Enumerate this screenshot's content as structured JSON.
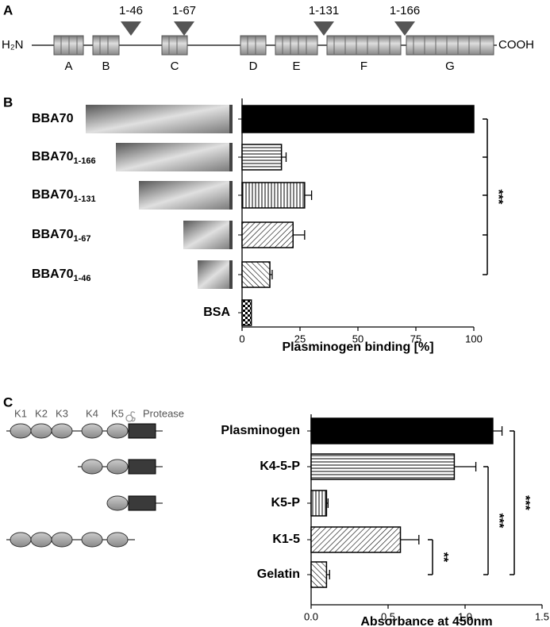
{
  "panels": [
    "A",
    "B",
    "C"
  ],
  "diagram": {
    "n_terminus": "H₂N",
    "c_terminus": "COOH",
    "segments": [
      "A",
      "B",
      "C",
      "D",
      "E",
      "F",
      "G"
    ],
    "truncations": [
      "1-46",
      "1-67",
      "1-131",
      "1-166"
    ]
  },
  "domains": {
    "kringles": [
      "K1",
      "K2",
      "K3",
      "K4",
      "K5"
    ],
    "protease": "Protease"
  },
  "chart_data": [
    {
      "type": "hbar",
      "categories": [
        "BBA70",
        "BBA70",
        "BBA70",
        "BBA70",
        "BBA70",
        "BSA"
      ],
      "category_subscripts": [
        null,
        "1-166",
        "1-131",
        "1-67",
        "1-46",
        null
      ],
      "values": [
        100,
        17,
        27,
        22,
        12,
        4
      ],
      "errors": [
        null,
        2,
        3,
        5,
        1,
        null
      ],
      "patterns": [
        "solid",
        "hlines",
        "vlines",
        "diag",
        "antidiag",
        "checker"
      ],
      "color": "#000000",
      "xlim": [
        0,
        100
      ],
      "xticks": [
        0,
        25,
        50,
        75,
        100
      ],
      "xlabel": "Plasminogen binding [%]",
      "significance": [
        {
          "label": "***",
          "from": 0,
          "to": 4
        }
      ]
    },
    {
      "type": "hbar",
      "categories": [
        "Plasminogen",
        "K4-5-P",
        "K5-P",
        "K1-5",
        "Gelatin"
      ],
      "values": [
        1.18,
        0.93,
        0.1,
        0.58,
        0.1
      ],
      "errors": [
        0.06,
        0.14,
        0.01,
        0.12,
        0.02
      ],
      "patterns": [
        "solid",
        "hlines",
        "vlines",
        "diag",
        "antidiag"
      ],
      "color": "#000000",
      "xlim": [
        0,
        1.5
      ],
      "xticks": [
        {
          "value": 0,
          "label": "0.0"
        },
        0.5,
        {
          "value": 1,
          "label": "1.0"
        },
        1.5
      ],
      "xlabel": "Absorbance at 450nm",
      "significance": [
        {
          "label": "**",
          "from": 3,
          "to": 4
        },
        {
          "label": "***",
          "from": 1,
          "to": 4
        },
        {
          "label": "***",
          "from": 0,
          "to": 4
        }
      ]
    }
  ]
}
